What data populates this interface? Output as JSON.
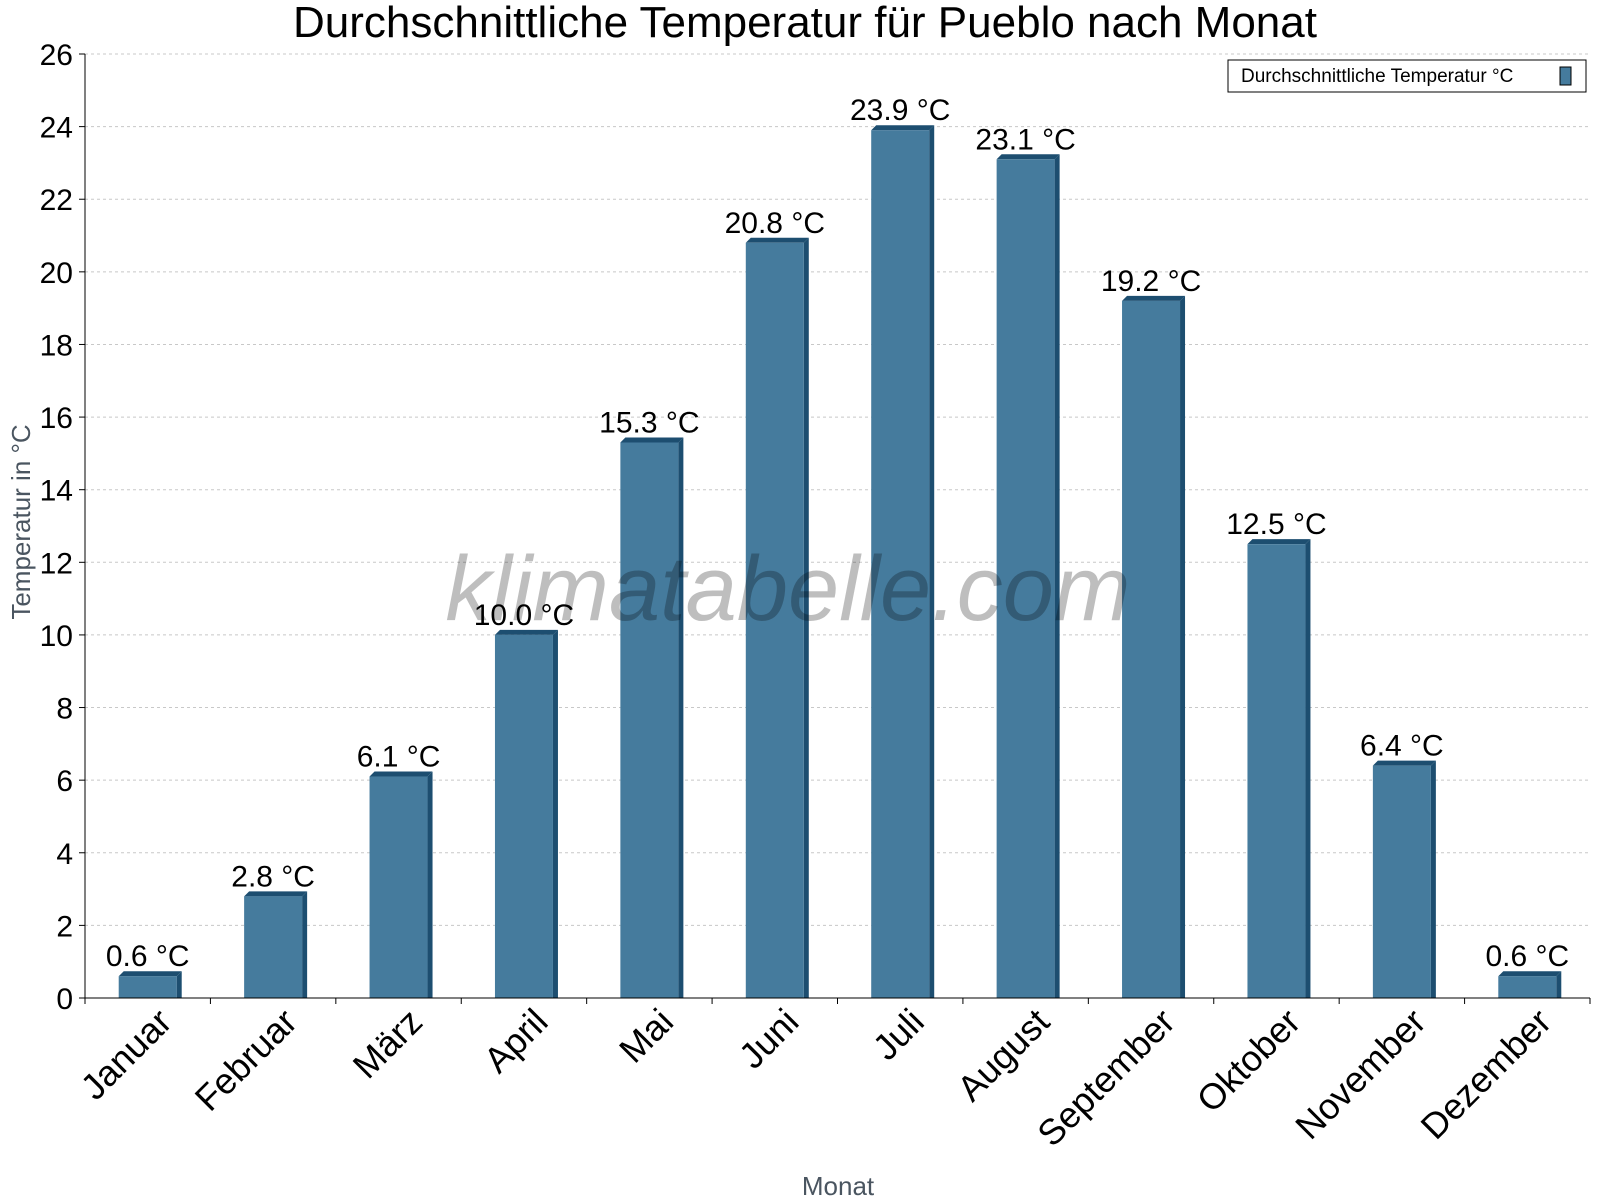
{
  "watermark": "klimatabelle.com",
  "colors": {
    "bar": "#457b9d",
    "bar_side": "#1d4e70",
    "grid": "#c8c8c8"
  },
  "chart_data": {
    "type": "bar",
    "title": "Durchschnittliche Temperatur für Pueblo nach Monat",
    "xlabel": "Monat",
    "ylabel": "Temperatur in °C",
    "ylim": [
      0,
      26
    ],
    "yticks": [
      0,
      2,
      4,
      6,
      8,
      10,
      12,
      14,
      16,
      18,
      20,
      22,
      24,
      26
    ],
    "grid": true,
    "legend_position": "top-right",
    "categories": [
      "Januar",
      "Februar",
      "März",
      "April",
      "Mai",
      "Juni",
      "Juli",
      "August",
      "September",
      "Oktober",
      "November",
      "Dezember"
    ],
    "series": [
      {
        "name": "Durchschnittliche Temperatur °C",
        "values": [
          0.6,
          2.8,
          6.1,
          10.0,
          15.3,
          20.8,
          23.9,
          23.1,
          19.2,
          12.5,
          6.4,
          0.6
        ],
        "labels": [
          "0.6 °C",
          "2.8 °C",
          "6.1 °C",
          "10.0 °C",
          "15.3 °C",
          "20.8 °C",
          "23.9 °C",
          "23.1 °C",
          "19.2 °C",
          "12.5 °C",
          "6.4 °C",
          "0.6 °C"
        ]
      }
    ]
  }
}
